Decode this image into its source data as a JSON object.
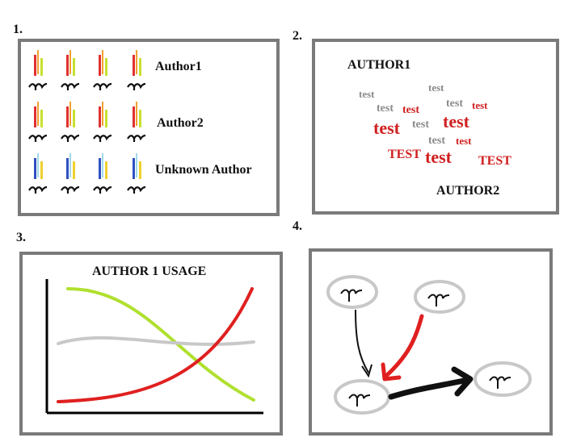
{
  "panel_numbers": [
    "1.",
    "2.",
    "3.",
    "4."
  ],
  "panel1": {
    "rows": [
      {
        "label": "Author1",
        "colors": [
          "#e03030",
          "#f0a030",
          "#c8e030"
        ]
      },
      {
        "label": "Author2",
        "colors": [
          "#e03030",
          "#f0a030",
          "#c8e030"
        ]
      },
      {
        "label": "Unknown Author",
        "colors": [
          "#3050c0",
          "#a0d8e8",
          "#f0d030"
        ]
      }
    ]
  },
  "panel2": {
    "author1": "AUTHOR1",
    "author2": "AUTHOR2",
    "words": [
      {
        "text": "test",
        "color": "#8a8a8a",
        "size": 13
      },
      {
        "text": "test",
        "color": "#8a8a8a",
        "size": 13
      },
      {
        "text": "test",
        "color": "#8a8a8a",
        "size": 14
      },
      {
        "text": "test",
        "color": "#d02020",
        "size": 14
      },
      {
        "text": "test",
        "color": "#8a8a8a",
        "size": 14
      },
      {
        "text": "test",
        "color": "#d02020",
        "size": 13
      },
      {
        "text": "test",
        "color": "#d02020",
        "size": 22
      },
      {
        "text": "test",
        "color": "#8a8a8a",
        "size": 14
      },
      {
        "text": "test",
        "color": "#d02020",
        "size": 22
      },
      {
        "text": "test",
        "color": "#8a8a8a",
        "size": 14
      },
      {
        "text": "test",
        "color": "#d02020",
        "size": 13
      },
      {
        "text": "TEST",
        "color": "#d02020",
        "size": 16
      },
      {
        "text": "test",
        "color": "#d02020",
        "size": 22
      },
      {
        "text": "TEST",
        "color": "#d02020",
        "size": 16
      }
    ]
  },
  "panel3": {
    "title": "AUTHOR 1 USAGE",
    "curve_colors": [
      "#b0e030",
      "#c8c8c8",
      "#e02020"
    ]
  },
  "panel4": {
    "node_color": "#c8c8c8",
    "edges": [
      {
        "from": 0,
        "to": 2,
        "color": "#111111"
      },
      {
        "from": 1,
        "to": 2,
        "color": "#e02020"
      },
      {
        "from": 2,
        "to": 3,
        "color": "#111111"
      }
    ]
  }
}
